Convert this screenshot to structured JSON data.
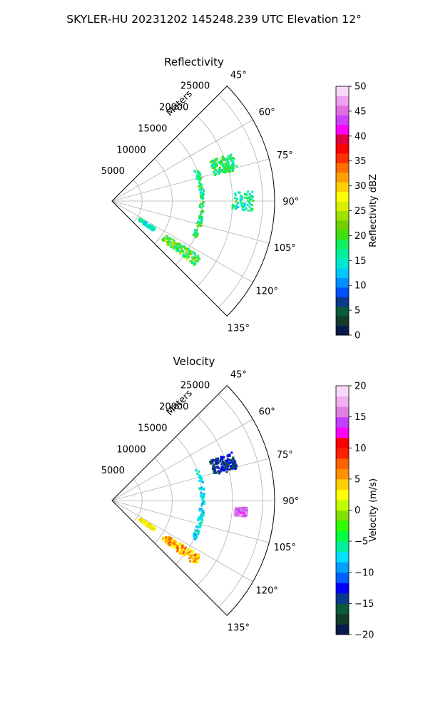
{
  "figure": {
    "title": "SKYLER-HU  20231202  145248.239 UTC Elevation 12°"
  },
  "chart_data": [
    {
      "type": "polar-sector",
      "title": "Reflectivity",
      "radial_label": "Meters",
      "theta_range_deg": [
        45,
        135
      ],
      "r_range_m": [
        0,
        27000
      ],
      "angle_ticks": [
        45,
        60,
        75,
        90,
        105,
        120,
        135
      ],
      "angle_tick_labels": [
        "45°",
        "60°",
        "75°",
        "90°",
        "105°",
        "120°",
        "135°"
      ],
      "radial_ticks": [
        5000,
        10000,
        15000,
        20000,
        25000
      ],
      "radial_tick_labels": [
        "5000",
        "10000",
        "15000",
        "20000",
        "25000"
      ],
      "grid": true,
      "colorbar": {
        "label": "Reflectivity dBZ",
        "vmin": 0,
        "vmax": 50,
        "ticks": [
          0,
          5,
          10,
          15,
          20,
          25,
          30,
          35,
          40,
          45,
          50
        ],
        "tick_labels": [
          "0",
          "5",
          "10",
          "15",
          "20",
          "25",
          "30",
          "35",
          "40",
          "45",
          "50"
        ]
      },
      "echo_regions": [
        {
          "name": "north-east cluster",
          "theta": [
            68,
            76
          ],
          "r": [
            17500,
            21500
          ],
          "value": [
            14,
            22
          ],
          "density": 0.55
        },
        {
          "name": "east scatter",
          "theta": [
            86,
            94
          ],
          "r": [
            20000,
            23500
          ],
          "value": [
            12,
            20
          ],
          "density": 0.25
        },
        {
          "name": "arc",
          "theta": [
            70,
            116
          ],
          "r": [
            14600,
            15400
          ],
          "value": [
            14,
            22
          ],
          "density": 0.35
        },
        {
          "name": "south-west band",
          "theta": [
            122,
            128
          ],
          "r": [
            10500,
            17500
          ],
          "value": [
            14,
            26
          ],
          "density": 0.6
        },
        {
          "name": "south-west patch",
          "theta": [
            122,
            126
          ],
          "r": [
            5500,
            8500
          ],
          "value": [
            12,
            18
          ],
          "density": 0.5
        }
      ]
    },
    {
      "type": "polar-sector",
      "title": "Velocity",
      "radial_label": "Meters",
      "theta_range_deg": [
        45,
        135
      ],
      "r_range_m": [
        0,
        27000
      ],
      "angle_ticks": [
        45,
        60,
        75,
        90,
        105,
        120,
        135
      ],
      "angle_tick_labels": [
        "45°",
        "60°",
        "75°",
        "90°",
        "105°",
        "120°",
        "135°"
      ],
      "radial_ticks": [
        5000,
        10000,
        15000,
        20000,
        25000
      ],
      "radial_tick_labels": [
        "5000",
        "10000",
        "15000",
        "20000",
        "25000"
      ],
      "grid": true,
      "colorbar": {
        "label": "Velocity (m/s)",
        "vmin": -20,
        "vmax": 20,
        "ticks": [
          -20,
          -15,
          -10,
          -5,
          0,
          5,
          10,
          15,
          20
        ],
        "tick_labels": [
          "−20",
          "−15",
          "−10",
          "−5",
          "0",
          "5",
          "10",
          "15",
          "20"
        ]
      },
      "echo_regions": [
        {
          "name": "north-east cluster",
          "theta": [
            68,
            76
          ],
          "r": [
            17500,
            21500
          ],
          "value": [
            -16,
            -12
          ],
          "density": 0.55
        },
        {
          "name": "east scatter",
          "theta": [
            93,
            97
          ],
          "r": [
            20500,
            22500
          ],
          "value": [
            13,
            17
          ],
          "density": 0.35
        },
        {
          "name": "arc",
          "theta": [
            70,
            116
          ],
          "r": [
            14600,
            15400
          ],
          "value": [
            -9,
            -6
          ],
          "density": 0.35
        },
        {
          "name": "south-west band",
          "theta": [
            122,
            128
          ],
          "r": [
            10500,
            17500
          ],
          "value": [
            2,
            8
          ],
          "density": 0.6
        },
        {
          "name": "south-west patch",
          "theta": [
            122,
            126
          ],
          "r": [
            5500,
            8500
          ],
          "value": [
            1,
            5
          ],
          "density": 0.5
        }
      ]
    }
  ],
  "colormaps": {
    "reflectivity": [
      "#071a4a",
      "#143a2a",
      "#0b5a3a",
      "#0b3a8a",
      "#0050ff",
      "#0090ff",
      "#00c8ff",
      "#00e8d0",
      "#00f0a0",
      "#10f060",
      "#40e010",
      "#70d000",
      "#a0e000",
      "#d8f000",
      "#ffff00",
      "#ffd000",
      "#ffa000",
      "#ff7000",
      "#ff3000",
      "#ff0000",
      "#e00040",
      "#ff00ff",
      "#d040ff",
      "#e070e0",
      "#f0a0f0",
      "#f8d8f8"
    ],
    "velocity": [
      "#071a4a",
      "#143a2a",
      "#0b5a3a",
      "#0b3a8a",
      "#0000ff",
      "#0060ff",
      "#00a0ff",
      "#00e0ff",
      "#00f0a0",
      "#00ff40",
      "#30ff00",
      "#80e000",
      "#c0ff00",
      "#ffff00",
      "#ffd000",
      "#ff9000",
      "#ff6000",
      "#ff2000",
      "#ff0000",
      "#ff00ff",
      "#c040ff",
      "#e080e0",
      "#f0b0f0",
      "#f8d8f8"
    ]
  }
}
